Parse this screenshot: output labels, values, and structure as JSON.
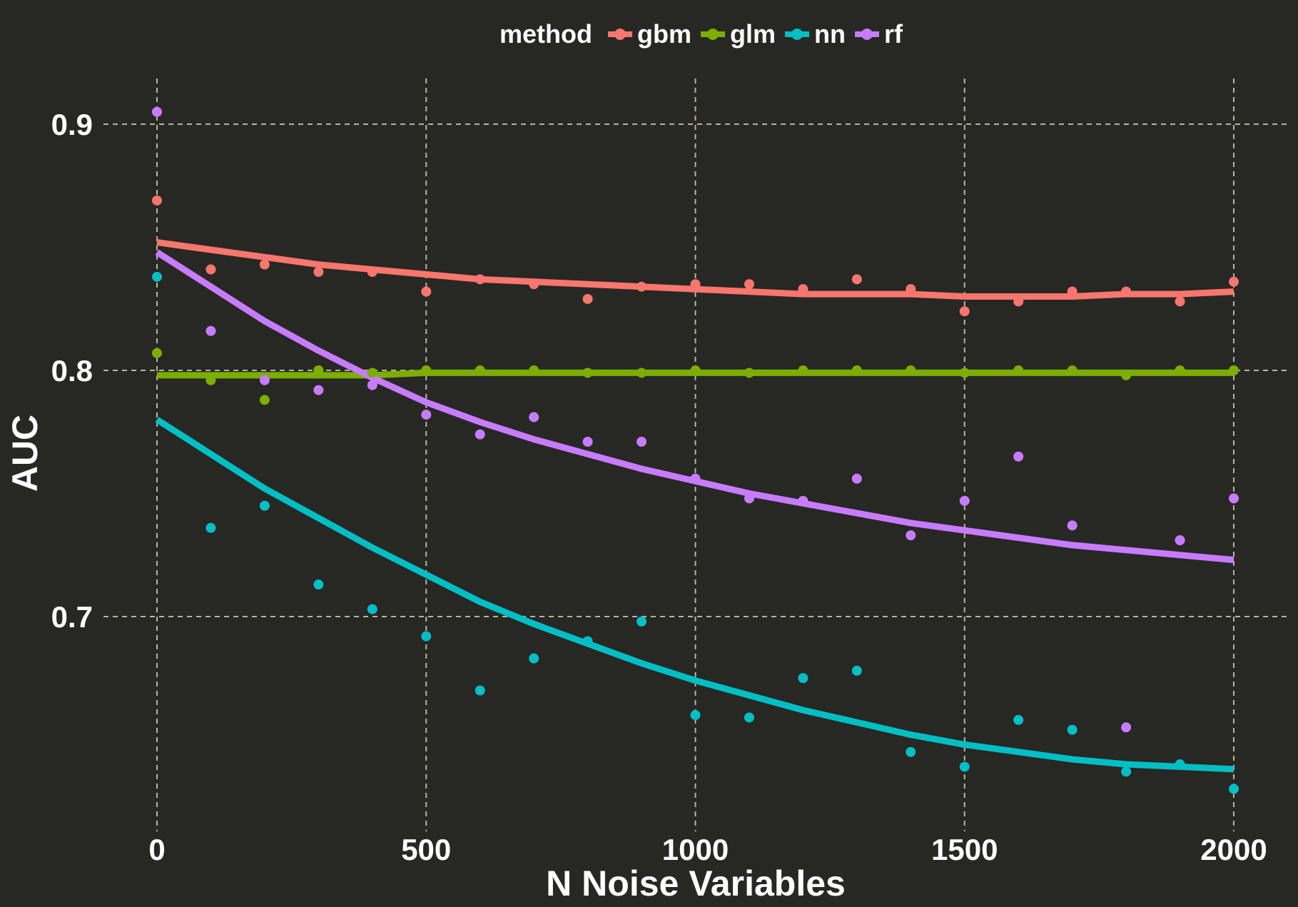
{
  "chart_data": {
    "type": "scatter",
    "title": "",
    "xlabel": "N Noise Variables",
    "ylabel": "AUC",
    "xlim": [
      0,
      2000
    ],
    "ylim": [
      0.625,
      0.9
    ],
    "x_ticks": [
      0,
      500,
      1000,
      1500,
      2000
    ],
    "x_tick_labels": [
      "0",
      "500",
      "1000",
      "1500",
      "2000"
    ],
    "y_ticks": [
      0.7,
      0.8,
      0.9
    ],
    "y_tick_labels": [
      "0.7",
      "0.8",
      "0.9"
    ],
    "grid": true,
    "legend_title": "method",
    "legend_position": "top",
    "background_color": "#272724",
    "x": [
      0,
      100,
      200,
      300,
      400,
      500,
      600,
      700,
      800,
      900,
      1000,
      1100,
      1200,
      1300,
      1400,
      1500,
      1600,
      1700,
      1800,
      1900,
      2000
    ],
    "series": [
      {
        "name": "gbm",
        "color": "#F8766D",
        "points": [
          0.869,
          0.841,
          0.843,
          0.84,
          0.84,
          0.832,
          0.837,
          0.835,
          0.829,
          0.834,
          0.835,
          0.835,
          0.833,
          0.837,
          0.833,
          0.824,
          0.828,
          0.832,
          0.832,
          0.828,
          0.836
        ],
        "trend": [
          0.852,
          0.849,
          0.846,
          0.843,
          0.841,
          0.839,
          0.837,
          0.836,
          0.835,
          0.834,
          0.833,
          0.832,
          0.831,
          0.831,
          0.831,
          0.83,
          0.83,
          0.83,
          0.831,
          0.831,
          0.832
        ]
      },
      {
        "name": "glm",
        "color": "#7CAE00",
        "points": [
          0.807,
          0.796,
          0.788,
          0.8,
          0.799,
          0.8,
          0.8,
          0.8,
          0.799,
          0.799,
          0.8,
          0.799,
          0.8,
          0.8,
          0.8,
          0.799,
          0.8,
          0.8,
          0.798,
          0.8,
          0.8
        ],
        "trend": [
          0.798,
          0.798,
          0.798,
          0.798,
          0.798,
          0.799,
          0.799,
          0.799,
          0.799,
          0.799,
          0.799,
          0.799,
          0.799,
          0.799,
          0.799,
          0.799,
          0.799,
          0.799,
          0.799,
          0.799,
          0.799
        ]
      },
      {
        "name": "nn",
        "color": "#00BFC4",
        "points": [
          0.838,
          0.736,
          0.745,
          0.713,
          0.703,
          0.692,
          0.67,
          0.683,
          0.69,
          0.698,
          0.66,
          0.659,
          0.675,
          0.678,
          0.645,
          0.639,
          0.658,
          0.654,
          0.637,
          0.64,
          0.63
        ],
        "trend": [
          0.78,
          0.766,
          0.752,
          0.74,
          0.728,
          0.717,
          0.706,
          0.697,
          0.689,
          0.681,
          0.674,
          0.668,
          0.662,
          0.657,
          0.652,
          0.648,
          0.645,
          0.642,
          0.64,
          0.639,
          0.638
        ]
      },
      {
        "name": "rf",
        "color": "#C77CFF",
        "points": [
          0.905,
          0.816,
          0.796,
          0.792,
          0.794,
          0.782,
          0.774,
          0.781,
          0.771,
          0.771,
          0.756,
          0.748,
          0.747,
          0.756,
          0.733,
          0.747,
          0.765,
          0.737,
          0.655,
          0.731,
          0.748
        ],
        "trend": [
          0.848,
          0.834,
          0.82,
          0.808,
          0.797,
          0.787,
          0.779,
          0.772,
          0.766,
          0.76,
          0.755,
          0.75,
          0.746,
          0.742,
          0.738,
          0.735,
          0.732,
          0.729,
          0.727,
          0.725,
          0.723
        ]
      }
    ]
  }
}
